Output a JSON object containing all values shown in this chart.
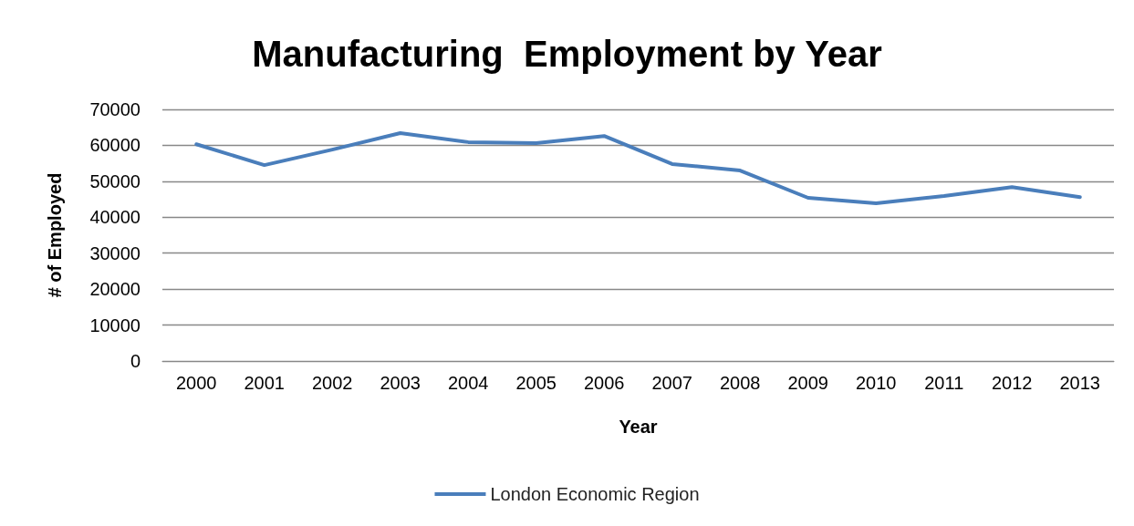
{
  "chart_data": {
    "type": "line",
    "title": "Manufacturing  Employment by Year",
    "xlabel": "Year",
    "ylabel": "# of Employed",
    "categories": [
      "2000",
      "2001",
      "2002",
      "2003",
      "2004",
      "2005",
      "2006",
      "2007",
      "2008",
      "2009",
      "2010",
      "2011",
      "2012",
      "2013"
    ],
    "series": [
      {
        "name": "London Economic Region",
        "color": "#4a7ebb",
        "values": [
          60300,
          54500,
          58800,
          63400,
          60900,
          60600,
          62600,
          54800,
          53000,
          45400,
          43900,
          45900,
          48400,
          45600
        ]
      }
    ],
    "ylim": [
      0,
      70000
    ],
    "yticks": [
      0,
      10000,
      20000,
      30000,
      40000,
      50000,
      60000,
      70000
    ],
    "grid": "y",
    "legend": "bottom",
    "marker": "none",
    "line_style": "solid"
  }
}
